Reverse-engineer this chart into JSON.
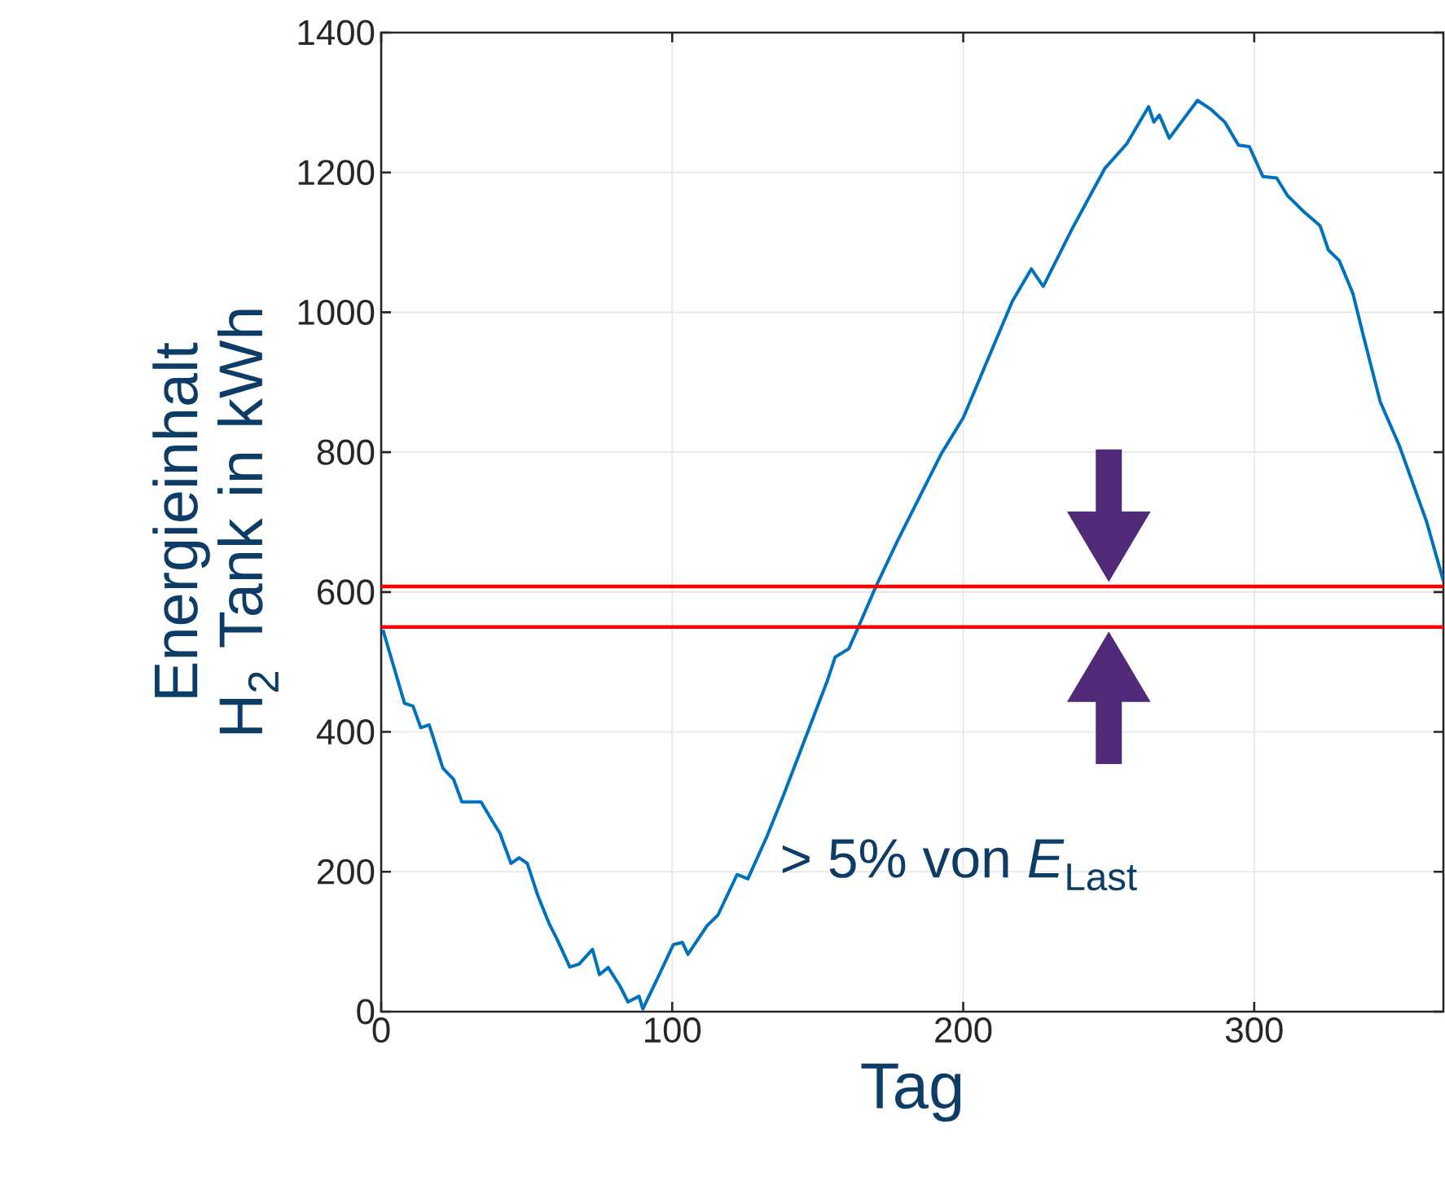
{
  "chart_data": {
    "type": "line",
    "xlabel": "Tag",
    "ylabel": "Energieinhalt H$_{2}$ Tank in kWh",
    "annotations": [
      "> 5% von *E*$_{Last}$"
    ],
    "xlim": [
      0,
      365
    ],
    "ylim": [
      0,
      1400
    ],
    "xticks": [
      0,
      100,
      200,
      300
    ],
    "yticks": [
      0,
      200,
      400,
      600,
      800,
      1000,
      1200,
      1400
    ],
    "grid": true,
    "ref_lines": [
      {
        "axis": "y",
        "value": 608,
        "color": "#ff0000"
      },
      {
        "axis": "y",
        "value": 550,
        "color": "#ff0000"
      }
    ],
    "series": [
      {
        "color": "#0072bd",
        "x": [
          0.6,
          8,
          10.9,
          13.6,
          16.5,
          21.2,
          24.9,
          27.7,
          34.3,
          38,
          40.8,
          44.6,
          47.4,
          50.2,
          53.9,
          57.7,
          60.5,
          64.8,
          68,
          72.6,
          75,
          78,
          82,
          84.8,
          88.6,
          89.9,
          95.1,
          100.4,
          103.5,
          105.4,
          112,
          115.7,
          122.3,
          126,
          132.6,
          138.2,
          153.2,
          156,
          160.7,
          164.4,
          170,
          177.5,
          185,
          192.5,
          200,
          209.4,
          216.9,
          223.4,
          227.5,
          237.5,
          248.7,
          256.2,
          263.7,
          265.5,
          267.4,
          270.8,
          280.5,
          285.2,
          289.9,
          294.6,
          298.3,
          303,
          307.7,
          311.4,
          317,
          322.6,
          325.5,
          329.2,
          333.9,
          337.6,
          343.3,
          349.8,
          359.2,
          365
        ],
        "values": [
          546,
          441,
          437,
          406,
          410,
          348,
          332,
          300,
          300,
          274,
          255,
          212,
          220,
          212,
          165,
          126,
          103,
          64,
          68,
          89,
          53,
          63,
          37,
          14,
          22,
          4,
          49,
          96,
          99,
          82,
          123,
          138,
          196,
          190,
          251,
          309,
          472,
          507,
          519,
          554,
          608,
          674,
          736,
          798,
          849,
          942,
          1016,
          1062,
          1037,
          1120,
          1206,
          1241,
          1294,
          1272,
          1282,
          1249,
          1303,
          1290,
          1272,
          1239,
          1237,
          1194,
          1192,
          1167,
          1144,
          1124,
          1089,
          1074,
          1027,
          965,
          872,
          810,
          701,
          616
        ]
      }
    ]
  }
}
